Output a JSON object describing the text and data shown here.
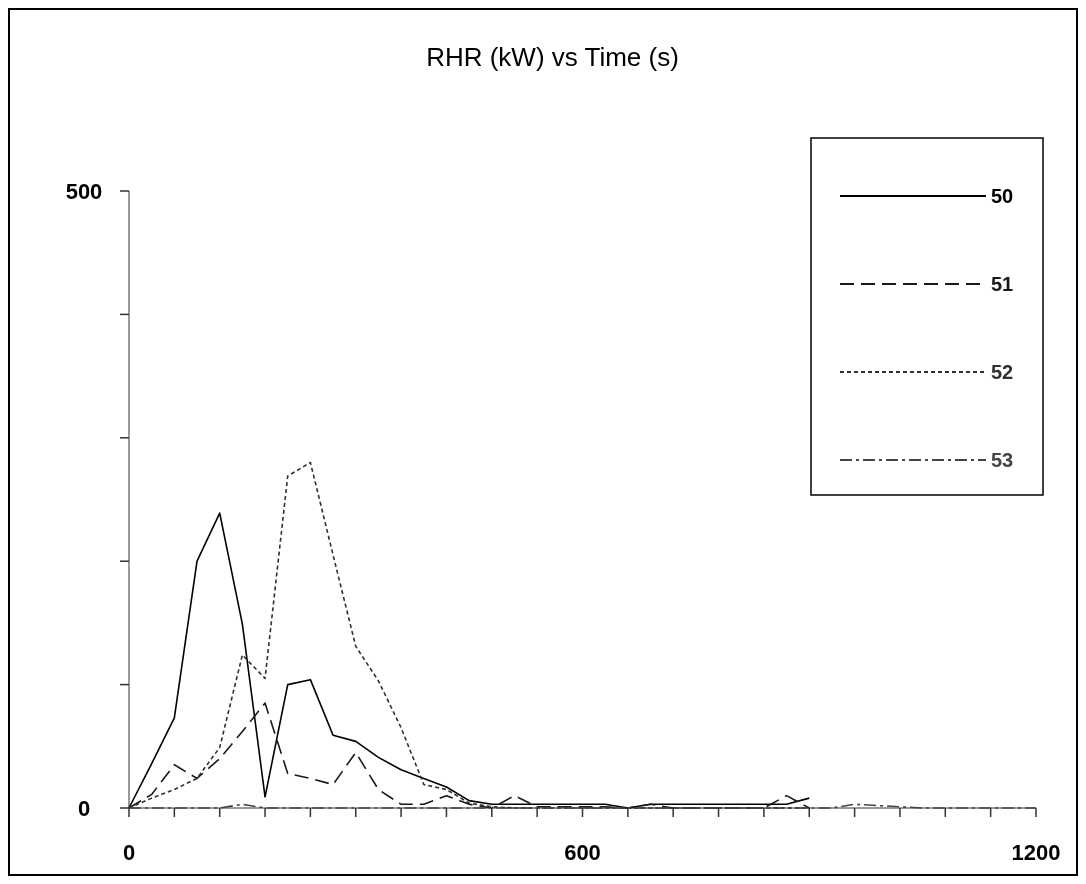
{
  "chart_data": {
    "type": "line",
    "title": "RHR (kW) vs Time (s)",
    "x": [
      0,
      30,
      60,
      90,
      120,
      150,
      180,
      210,
      240,
      270,
      300,
      330,
      360,
      390,
      420,
      450,
      480,
      510,
      540,
      570,
      600,
      630,
      660,
      690,
      720,
      750,
      780,
      810,
      840,
      870,
      900,
      930,
      960,
      990,
      1020,
      1050,
      1080,
      1110,
      1140,
      1170,
      1200
    ],
    "series": [
      {
        "name": "50",
        "color": "#000000",
        "line_style": "solid",
        "values": [
          0,
          36,
          73,
          200,
          239,
          149,
          9,
          100,
          104,
          59,
          54,
          41,
          31,
          24,
          17,
          6,
          3,
          3,
          3,
          3,
          3,
          3,
          0,
          3,
          3,
          3,
          3,
          3,
          3,
          3,
          8,
          null,
          null,
          null,
          null,
          null,
          null,
          null,
          null,
          null,
          null
        ]
      },
      {
        "name": "51",
        "color": "#1a1a1a",
        "line_style": "dashed",
        "values": [
          0,
          11,
          35,
          24,
          40,
          62,
          85,
          28,
          24,
          19,
          45,
          15,
          3,
          3,
          10,
          3,
          0,
          10,
          1,
          1,
          1,
          1,
          0,
          3,
          0,
          0,
          0,
          0,
          0,
          10,
          0,
          null,
          null,
          null,
          null,
          null,
          null,
          null,
          null,
          null,
          null
        ]
      },
      {
        "name": "52",
        "color": "#303030",
        "line_style": "dotted",
        "values": [
          0,
          8,
          15,
          24,
          49,
          124,
          105,
          269,
          280,
          205,
          131,
          103,
          65,
          19,
          15,
          4,
          1,
          0,
          0,
          0,
          0,
          0,
          0,
          0,
          0,
          0,
          0,
          0,
          0,
          0,
          0,
          null,
          null,
          null,
          null,
          null,
          null,
          null,
          null,
          null,
          null
        ]
      },
      {
        "name": "53",
        "color": "#444444",
        "line_style": "dashdot",
        "values": [
          0,
          0,
          0,
          0,
          0,
          3,
          0,
          0,
          0,
          0,
          0,
          0,
          0,
          0,
          0,
          0,
          0,
          0,
          0,
          0,
          0,
          0,
          0,
          0,
          0,
          0,
          0,
          0,
          0,
          0,
          0,
          0,
          3,
          2,
          1,
          0,
          0,
          0,
          0,
          0,
          0
        ]
      }
    ],
    "xlim": [
      0,
      1200
    ],
    "xticks": [
      0,
      {
        "value": 60,
        "label": null
      },
      {
        "value": 120,
        "label": null
      },
      {
        "value": 180,
        "label": null
      },
      {
        "value": 240,
        "label": null
      },
      {
        "value": 300,
        "label": null
      },
      {
        "value": 360,
        "label": null
      },
      {
        "value": 420,
        "label": null
      },
      {
        "value": 480,
        "label": null
      },
      {
        "value": 540,
        "label": null
      },
      600,
      {
        "value": 660,
        "label": null
      },
      {
        "value": 720,
        "label": null
      },
      {
        "value": 780,
        "label": null
      },
      {
        "value": 840,
        "label": null
      },
      {
        "value": 900,
        "label": null
      },
      {
        "value": 960,
        "label": null
      },
      {
        "value": 1020,
        "label": null
      },
      {
        "value": 1080,
        "label": null
      },
      {
        "value": 1140,
        "label": null
      },
      1200
    ],
    "ylim": [
      0,
      500
    ],
    "yticks": [
      0,
      {
        "value": 100,
        "label": null
      },
      {
        "value": 200,
        "label": null
      },
      {
        "value": 300,
        "label": null
      },
      {
        "value": 400,
        "label": null
      },
      500
    ],
    "legend": "top right",
    "grid": false,
    "marker": "none"
  }
}
